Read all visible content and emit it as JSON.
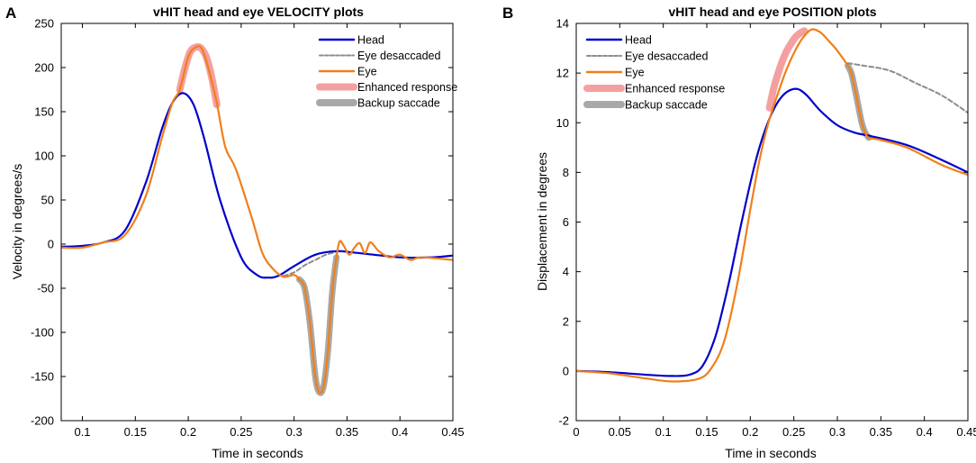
{
  "panel_labels": [
    "A",
    "B"
  ],
  "chart_data": [
    {
      "type": "line",
      "title": "vHIT head and eye VELOCITY plots",
      "xlabel": "Time in seconds",
      "ylabel": "Velocity in degrees/s",
      "xlim": [
        0.08,
        0.45
      ],
      "ylim": [
        -200,
        250
      ],
      "xticks": [
        0.1,
        0.15,
        0.2,
        0.25,
        0.3,
        0.35,
        0.4,
        0.45
      ],
      "xtick_labels": [
        "0.1",
        "0.15",
        "0.2",
        "0.25",
        "0.3",
        "0.35",
        "0.4",
        "0.45"
      ],
      "yticks": [
        -200,
        -150,
        -100,
        -50,
        0,
        50,
        100,
        150,
        200,
        250
      ],
      "ytick_labels": [
        "-200",
        "-150",
        "-100",
        "-50",
        "0",
        "50",
        "100",
        "150",
        "200",
        "250"
      ],
      "legend": [
        "Head",
        "Eye desaccaded",
        "Eye",
        "Enhanced response",
        "Backup saccade"
      ],
      "legend_position": "top-right",
      "series": [
        {
          "name": "Enhanced response",
          "color": "#f5a0a0",
          "width": 8,
          "dash": "",
          "x": [
            0.192,
            0.197,
            0.202,
            0.207,
            0.212,
            0.217,
            0.222,
            0.227
          ],
          "y": [
            175,
            200,
            218,
            223,
            222,
            212,
            190,
            158
          ]
        },
        {
          "name": "Backup saccade",
          "color": "#a8a8a8",
          "width": 7,
          "dash": "",
          "x": [
            0.305,
            0.31,
            0.315,
            0.32,
            0.324,
            0.328,
            0.332,
            0.336,
            0.34
          ],
          "y": [
            -40,
            -50,
            -90,
            -150,
            -168,
            -160,
            -120,
            -55,
            -15
          ]
        },
        {
          "name": "Eye desaccaded",
          "color": "#8c8c8c",
          "width": 2,
          "dash": "5,3",
          "x": [
            0.29,
            0.3,
            0.31,
            0.32,
            0.33,
            0.34
          ],
          "y": [
            -36,
            -32,
            -24,
            -18,
            -12,
            -9
          ]
        },
        {
          "name": "Head",
          "color": "#0000cc",
          "width": 2.2,
          "dash": "",
          "x": [
            0.08,
            0.1,
            0.12,
            0.14,
            0.16,
            0.175,
            0.185,
            0.195,
            0.205,
            0.215,
            0.23,
            0.25,
            0.265,
            0.275,
            0.285,
            0.3,
            0.32,
            0.34,
            0.36,
            0.4,
            0.43,
            0.45
          ],
          "y": [
            -3,
            -2,
            2,
            15,
            70,
            130,
            160,
            171,
            158,
            120,
            50,
            -15,
            -35,
            -38,
            -36,
            -25,
            -12,
            -8,
            -10,
            -15,
            -15,
            -13
          ]
        },
        {
          "name": "Eye",
          "color": "#f07f1a",
          "width": 2.2,
          "dash": "",
          "x": [
            0.08,
            0.1,
            0.12,
            0.14,
            0.16,
            0.175,
            0.185,
            0.192,
            0.2,
            0.207,
            0.213,
            0.22,
            0.227,
            0.235,
            0.245,
            0.26,
            0.27,
            0.28,
            0.29,
            0.3,
            0.305,
            0.31,
            0.315,
            0.32,
            0.324,
            0.328,
            0.332,
            0.336,
            0.34,
            0.343,
            0.347,
            0.352,
            0.357,
            0.362,
            0.367,
            0.372,
            0.38,
            0.39,
            0.4,
            0.41,
            0.42,
            0.45
          ],
          "y": [
            -4,
            -4,
            2,
            10,
            55,
            120,
            160,
            175,
            212,
            223,
            221,
            195,
            160,
            110,
            85,
            30,
            -10,
            -28,
            -37,
            -35,
            -40,
            -50,
            -90,
            -150,
            -168,
            -160,
            -120,
            -55,
            -15,
            3,
            -2,
            -12,
            -4,
            1,
            -10,
            2,
            -8,
            -15,
            -12,
            -18,
            -15,
            -18
          ]
        }
      ]
    },
    {
      "type": "line",
      "title": "vHIT head and eye POSITION plots",
      "xlabel": "Time in seconds",
      "ylabel": "Displacement in degrees",
      "xlim": [
        0,
        0.45
      ],
      "ylim": [
        -2,
        14
      ],
      "xticks": [
        0,
        0.05,
        0.1,
        0.15,
        0.2,
        0.25,
        0.3,
        0.35,
        0.4,
        0.45
      ],
      "xtick_labels": [
        "0",
        "0.05",
        "0.1",
        "0.15",
        "0.2",
        "0.25",
        "0.3",
        "0.35",
        "0.4",
        "0.45"
      ],
      "yticks": [
        -2,
        0,
        2,
        4,
        6,
        8,
        10,
        12,
        14
      ],
      "ytick_labels": [
        "-2",
        "0",
        "2",
        "4",
        "6",
        "8",
        "10",
        "12",
        "14"
      ],
      "legend": [
        "Head",
        "Eye desaccaded",
        "Eye",
        "Enhanced response",
        "Backup saccade"
      ],
      "legend_position": "top-left",
      "series": [
        {
          "name": "Enhanced response",
          "color": "#f5a0a0",
          "width": 8,
          "dash": "",
          "x": [
            0.222,
            0.227,
            0.232,
            0.237,
            0.242,
            0.247,
            0.252,
            0.257,
            0.262
          ],
          "y": [
            10.6,
            11.4,
            12.0,
            12.5,
            12.9,
            13.2,
            13.45,
            13.6,
            13.7
          ]
        },
        {
          "name": "Backup saccade",
          "color": "#a8a8a8",
          "width": 7,
          "dash": "",
          "x": [
            0.312,
            0.316,
            0.32,
            0.324,
            0.328,
            0.332,
            0.336
          ],
          "y": [
            12.3,
            12.0,
            11.4,
            10.7,
            10.0,
            9.6,
            9.4
          ]
        },
        {
          "name": "Eye desaccaded",
          "color": "#8c8c8c",
          "width": 2,
          "dash": "5,3",
          "x": [
            0.312,
            0.33,
            0.36,
            0.39,
            0.42,
            0.45
          ],
          "y": [
            12.4,
            12.3,
            12.1,
            11.6,
            11.1,
            10.4
          ]
        },
        {
          "name": "Head",
          "color": "#0000cc",
          "width": 2.2,
          "dash": "",
          "x": [
            0,
            0.04,
            0.08,
            0.11,
            0.13,
            0.145,
            0.16,
            0.175,
            0.19,
            0.205,
            0.215,
            0.225,
            0.235,
            0.245,
            0.255,
            0.265,
            0.28,
            0.3,
            0.32,
            0.34,
            0.38,
            0.42,
            0.45
          ],
          "y": [
            0,
            -0.05,
            -0.15,
            -0.2,
            -0.15,
            0.2,
            1.4,
            3.5,
            6.0,
            8.3,
            9.5,
            10.4,
            11.0,
            11.3,
            11.35,
            11.1,
            10.5,
            9.9,
            9.6,
            9.45,
            9.1,
            8.5,
            8.0
          ]
        },
        {
          "name": "Eye",
          "color": "#f07f1a",
          "width": 2.2,
          "dash": "",
          "x": [
            0,
            0.04,
            0.08,
            0.11,
            0.14,
            0.155,
            0.17,
            0.185,
            0.2,
            0.21,
            0.22,
            0.23,
            0.24,
            0.25,
            0.26,
            0.27,
            0.28,
            0.29,
            0.3,
            0.312,
            0.316,
            0.32,
            0.324,
            0.328,
            0.332,
            0.336,
            0.35,
            0.38,
            0.42,
            0.45
          ],
          "y": [
            0,
            -0.1,
            -0.3,
            -0.42,
            -0.32,
            0.1,
            1.2,
            3.5,
            6.5,
            8.4,
            9.9,
            11.0,
            12.0,
            12.8,
            13.4,
            13.75,
            13.65,
            13.3,
            12.9,
            12.3,
            12.0,
            11.4,
            10.7,
            10.0,
            9.6,
            9.4,
            9.3,
            9.0,
            8.3,
            7.9
          ]
        }
      ]
    }
  ]
}
